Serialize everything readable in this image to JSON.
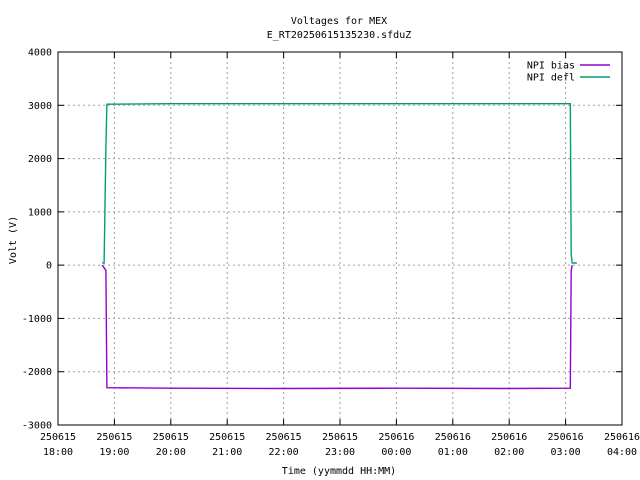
{
  "chart_data": {
    "type": "line",
    "title": "Voltages for MEX",
    "subtitle": "E_RT20250615135230.sfduZ",
    "xlabel": "Time (yymmdd HH:MM)",
    "ylabel": "Volt (V)",
    "ylim": [
      -3000,
      4000
    ],
    "yticks": [
      -3000,
      -2000,
      -1000,
      0,
      1000,
      2000,
      3000,
      4000
    ],
    "xlim": [
      "250615 18:00",
      "250616 04:00"
    ],
    "xticks": [
      {
        "date": "250615",
        "time": "18:00"
      },
      {
        "date": "250615",
        "time": "19:00"
      },
      {
        "date": "250615",
        "time": "20:00"
      },
      {
        "date": "250615",
        "time": "21:00"
      },
      {
        "date": "250615",
        "time": "22:00"
      },
      {
        "date": "250615",
        "time": "23:00"
      },
      {
        "date": "250616",
        "time": "00:00"
      },
      {
        "date": "250616",
        "time": "01:00"
      },
      {
        "date": "250616",
        "time": "02:00"
      },
      {
        "date": "250616",
        "time": "03:00"
      },
      {
        "date": "250616",
        "time": "04:00"
      }
    ],
    "grid": true,
    "legend_position": "top-right",
    "series": [
      {
        "name": "NPI bias",
        "color": "#9400d3",
        "points": [
          [
            "250615 18:47",
            0
          ],
          [
            "250615 18:49",
            -50
          ],
          [
            "250615 18:51",
            -100
          ],
          [
            "250615 18:52",
            -2300
          ],
          [
            "250615 20:00",
            -2310
          ],
          [
            "250615 22:00",
            -2315
          ],
          [
            "250616 00:00",
            -2310
          ],
          [
            "250616 02:00",
            -2315
          ],
          [
            "250616 03:05",
            -2310
          ],
          [
            "250616 03:06",
            -100
          ],
          [
            "250616 03:07",
            0
          ]
        ]
      },
      {
        "name": "NPI defl",
        "color": "#009e73",
        "points": [
          [
            "250615 18:47",
            40
          ],
          [
            "250615 18:49",
            40
          ],
          [
            "250615 18:51",
            2200
          ],
          [
            "250615 18:52",
            3020
          ],
          [
            "250615 20:00",
            3030
          ],
          [
            "250615 22:00",
            3030
          ],
          [
            "250616 00:00",
            3030
          ],
          [
            "250616 02:00",
            3030
          ],
          [
            "250616 03:05",
            3030
          ],
          [
            "250616 03:06",
            200
          ],
          [
            "250616 03:07",
            40
          ],
          [
            "250616 03:12",
            40
          ]
        ]
      }
    ]
  }
}
